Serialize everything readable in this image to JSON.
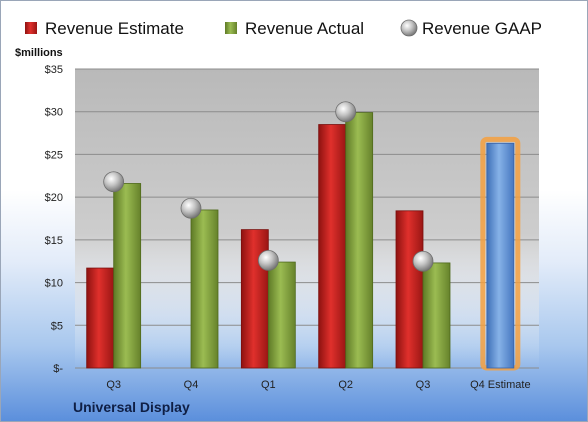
{
  "company": "Universal Display",
  "chart_data": {
    "type": "bar",
    "ylabel": "$millions",
    "categories": [
      "Q3",
      "Q4",
      "Q1",
      "Q2",
      "Q3",
      "Q4 Estimate"
    ],
    "ylim": [
      0,
      35
    ],
    "yticks": [
      0,
      5,
      10,
      15,
      20,
      25,
      30,
      35
    ],
    "ytick_labels": [
      "$-",
      "$5",
      "$10",
      "$15",
      "$20",
      "$25",
      "$30",
      "$35"
    ],
    "legend_position": "top",
    "grid": true,
    "series": [
      {
        "name": "Revenue Estimate",
        "kind": "bar",
        "color": "#c8201e",
        "values": [
          11.7,
          null,
          16.2,
          28.5,
          18.4,
          null
        ]
      },
      {
        "name": "Revenue Actual",
        "kind": "bar",
        "color": "#86a43e",
        "values": [
          21.6,
          18.5,
          12.4,
          29.9,
          12.3,
          null
        ]
      },
      {
        "name": "Revenue GAAP",
        "kind": "marker",
        "color": "#a8a8a8",
        "values": [
          21.8,
          18.7,
          12.6,
          30.0,
          12.5,
          null
        ]
      },
      {
        "name": "",
        "kind": "estimate-bar",
        "color": "#6a9ad8",
        "highlight": "#f4a040",
        "values": [
          null,
          null,
          null,
          null,
          null,
          26.3
        ]
      }
    ]
  }
}
